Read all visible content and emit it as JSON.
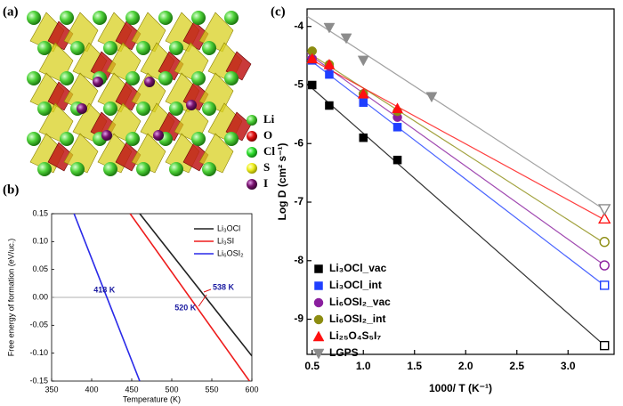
{
  "panel_labels": [
    "(a)",
    "(b)",
    "(c)"
  ],
  "structure_legend": [
    "Li",
    "O",
    "Cl",
    "S",
    "I"
  ],
  "chart_data": [
    {
      "type": "line",
      "x_label": "Temperature (K)",
      "y_label": "Free energy of formation (eV/uc.)",
      "xlim": [
        350,
        600
      ],
      "xticks": [
        350,
        400,
        450,
        500,
        550,
        600
      ],
      "ylim": [
        -0.15,
        0.15
      ],
      "yticks": [
        {
          "value": -0.15,
          "label": "-0.15"
        },
        {
          "value": -0.1,
          "label": "-0.10"
        },
        -0.05,
        {
          "value": 0,
          "label": "0.00"
        },
        0.05,
        {
          "value": 0.1,
          "label": "0.10"
        },
        0.15
      ],
      "hline": 0,
      "series": [
        {
          "name": "Li₃OCl",
          "color": "#222222",
          "x": [
            460,
            600
          ],
          "values": [
            0.15,
            -0.105
          ]
        },
        {
          "name": "Li₃SI",
          "color": "#ee1c1c",
          "x": [
            448,
            597
          ],
          "values": [
            0.15,
            -0.15
          ]
        },
        {
          "name": "Li₆OSI₂",
          "color": "#2a2ae8",
          "x": [
            378,
            460
          ],
          "values": [
            0.15,
            -0.15
          ]
        }
      ],
      "annotations": [
        "418 K",
        "520 K",
        "538 K"
      ]
    },
    {
      "type": "scatter",
      "x_label": "1000/ T (K⁻¹)",
      "y_label": "Log D (cm² s⁻¹)",
      "xlim": [
        0.45,
        3.45
      ],
      "xticks": [
        0.5,
        {
          "value": 1,
          "label": "1.0"
        },
        1.5,
        {
          "value": 2,
          "label": "2.0"
        },
        2.5,
        {
          "value": 3,
          "label": "3.0"
        }
      ],
      "ylim": [
        -9.6,
        -3.7
      ],
      "yticks": [
        -9,
        -8,
        -7,
        -6,
        -5,
        -4
      ],
      "fit_lines": true,
      "series": [
        {
          "name": "Li₃OCl_vac",
          "color": "#000000",
          "marker": "square",
          "x": [
            0.5,
            0.667,
            1.0,
            1.333,
            3.356
          ],
          "values": [
            -5.0,
            -5.35,
            -5.9,
            -6.28,
            -9.45
          ]
        },
        {
          "name": "Li₃OCl_int",
          "color": "#1f3fff",
          "marker": "square",
          "x": [
            0.5,
            0.667,
            1.0,
            1.333,
            3.356
          ],
          "values": [
            -4.58,
            -4.82,
            -5.3,
            -5.72,
            -8.42
          ]
        },
        {
          "name": "Li₆OSI₂_vac",
          "color": "#8a1e9e",
          "marker": "circle",
          "x": [
            0.5,
            0.667,
            1.0,
            1.333,
            3.356
          ],
          "values": [
            -4.55,
            -4.68,
            -5.15,
            -5.55,
            -8.08
          ]
        },
        {
          "name": "Li₆OSI₂_int",
          "color": "#8c8c10",
          "marker": "circle",
          "x": [
            0.5,
            0.667,
            1.0,
            1.333,
            3.356
          ],
          "values": [
            -4.42,
            -4.65,
            -5.15,
            -5.45,
            -7.68
          ]
        },
        {
          "name": "Li₂₅O₄S₅I₇",
          "color": "#ff1010",
          "marker": "triangle",
          "x": [
            0.5,
            0.667,
            1.0,
            1.333,
            3.356
          ],
          "values": [
            -4.55,
            -4.65,
            -5.15,
            -5.4,
            -7.28
          ]
        },
        {
          "name": "LGPS",
          "color": "#8c8c8c",
          "marker": "triangle-down",
          "x": [
            0.667,
            0.833,
            1.0,
            1.667,
            3.356
          ],
          "values": [
            -4.02,
            -4.2,
            -4.58,
            -5.2,
            -7.12
          ]
        }
      ]
    }
  ]
}
